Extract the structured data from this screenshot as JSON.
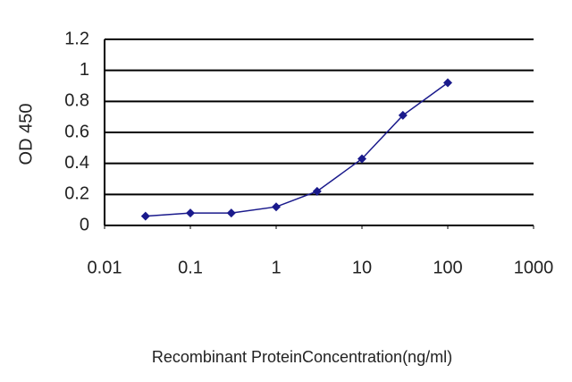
{
  "chart_data": {
    "type": "line",
    "x_label": "Recombinant ProteinConcentration(ng/ml)",
    "y_label": "OD 450",
    "x": [
      0.03,
      0.1,
      0.3,
      1,
      3,
      10,
      30,
      100
    ],
    "values": [
      0.06,
      0.08,
      0.08,
      0.12,
      0.22,
      0.43,
      0.71,
      0.92
    ],
    "color": "#1a1a8c",
    "marker": "diamond",
    "xscale": "log",
    "xlim": [
      0.01,
      1000
    ],
    "xticks": [
      0.01,
      0.1,
      1,
      10,
      100,
      1000
    ],
    "ylim": [
      0,
      1.2
    ],
    "yticks": [
      0,
      0.2,
      0.4,
      0.6,
      0.8,
      1,
      1.2
    ],
    "grid": true
  }
}
